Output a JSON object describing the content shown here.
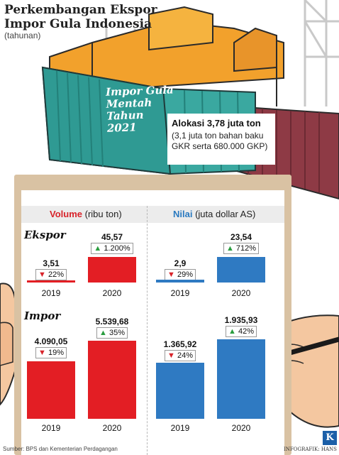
{
  "header": {
    "title_line1": "Perkembangan Ekspor",
    "title_line2": "Impor Gula Indonesia",
    "subtitle": "(tahunan)"
  },
  "container": {
    "label_lines": [
      "Impor Gula",
      "Mentah",
      "Tahun",
      "2021"
    ],
    "alloc_title": "Alokasi  3,78 juta ton",
    "alloc_detail": "(3,1 juta ton bahan baku GKR serta 680.000 GKP)"
  },
  "table": {
    "volume_header_bold": "Volume",
    "volume_header_unit": "(ribu ton)",
    "value_header_bold": "Nilai",
    "value_header_unit": "(juta dollar AS)"
  },
  "footer": {
    "source": "Sumber: BPS dan Kementerian Perdagangan",
    "credit": "INFOGRAFIK: HANS",
    "logo": "K"
  },
  "colors": {
    "volume": "#e31e24",
    "value": "#2f7ac2",
    "up": "#2a9d3f",
    "down": "#d8232a"
  },
  "chart_data": [
    {
      "type": "bar",
      "section": "Ekspor",
      "metric": "Volume",
      "unit": "(ribu ton)",
      "categories": [
        "2019",
        "2020"
      ],
      "values": [
        3.51,
        45.57
      ],
      "value_labels": [
        "3,51",
        "45,57"
      ],
      "change_labels": [
        "22%",
        "1.200%"
      ],
      "change_dir": [
        "down",
        "up"
      ]
    },
    {
      "type": "bar",
      "section": "Ekspor",
      "metric": "Nilai",
      "unit": "(juta dollar AS)",
      "categories": [
        "2019",
        "2020"
      ],
      "values": [
        2.9,
        23.54
      ],
      "value_labels": [
        "2,9",
        "23,54"
      ],
      "change_labels": [
        "29%",
        "712%"
      ],
      "change_dir": [
        "down",
        "up"
      ]
    },
    {
      "type": "bar",
      "section": "Impor",
      "metric": "Volume",
      "unit": "(ribu ton)",
      "categories": [
        "2019",
        "2020"
      ],
      "values": [
        4090.05,
        5539.68
      ],
      "value_labels": [
        "4.090,05",
        "5.539,68"
      ],
      "change_labels": [
        "19%",
        "35%"
      ],
      "change_dir": [
        "down",
        "up"
      ]
    },
    {
      "type": "bar",
      "section": "Impor",
      "metric": "Nilai",
      "unit": "(juta dollar AS)",
      "categories": [
        "2019",
        "2020"
      ],
      "values": [
        1365.92,
        1935.93
      ],
      "value_labels": [
        "1.365,92",
        "1.935,93"
      ],
      "change_labels": [
        "24%",
        "42%"
      ],
      "change_dir": [
        "down",
        "up"
      ]
    }
  ]
}
